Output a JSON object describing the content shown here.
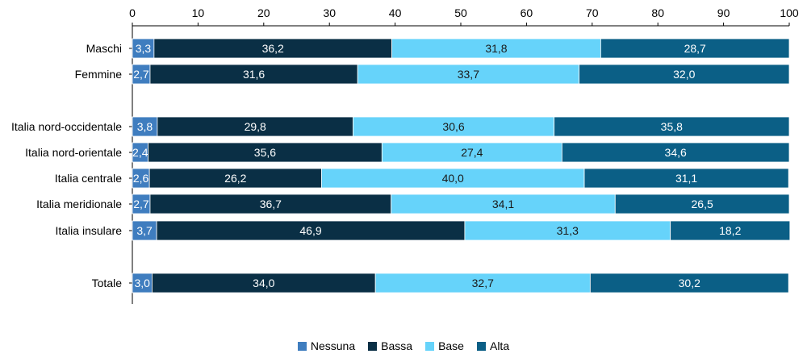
{
  "chart_data": {
    "type": "bar",
    "orientation": "horizontal",
    "stacked": true,
    "title": "",
    "xlabel": "",
    "ylabel": "",
    "xlim": [
      0,
      100
    ],
    "x_ticks": [
      "0",
      "10",
      "20",
      "30",
      "40",
      "50",
      "60",
      "70",
      "80",
      "90",
      "100"
    ],
    "grid": false,
    "legend_position": "bottom",
    "categories": [
      "Maschi",
      "Femmine",
      "Italia nord-occidentale",
      "Italia nord-orientale",
      "Italia centrale",
      "Italia meridionale",
      "Italia insulare",
      "Totale"
    ],
    "series": [
      {
        "name": "Nessuna",
        "color": "#3F7DBF",
        "values": [
          3.3,
          2.7,
          3.8,
          2.4,
          2.6,
          2.7,
          3.7,
          3.0
        ],
        "labels": [
          "3,3",
          "2,7",
          "3,8",
          "2,4",
          "2,6",
          "2,7",
          "3,7",
          "3,0"
        ]
      },
      {
        "name": "Bassa",
        "color": "#0A2F45",
        "values": [
          36.2,
          31.6,
          29.8,
          35.6,
          26.2,
          36.7,
          46.9,
          34.0
        ],
        "labels": [
          "36,2",
          "31,6",
          "29,8",
          "35,6",
          "26,2",
          "36,7",
          "46,9",
          "34,0"
        ]
      },
      {
        "name": "Base",
        "color": "#66D3FA",
        "values": [
          31.8,
          33.7,
          30.6,
          27.4,
          40.0,
          34.1,
          31.3,
          32.7
        ],
        "labels": [
          "31,8",
          "33,7",
          "30,6",
          "27,4",
          "40,0",
          "34,1",
          "31,3",
          "32,7"
        ]
      },
      {
        "name": "Alta",
        "color": "#0B5F86",
        "values": [
          28.7,
          32.0,
          35.8,
          34.6,
          31.1,
          26.5,
          18.2,
          30.2
        ],
        "labels": [
          "28,7",
          "32,0",
          "35,8",
          "34,6",
          "31,1",
          "26,5",
          "18,2",
          "30,2"
        ]
      }
    ]
  }
}
